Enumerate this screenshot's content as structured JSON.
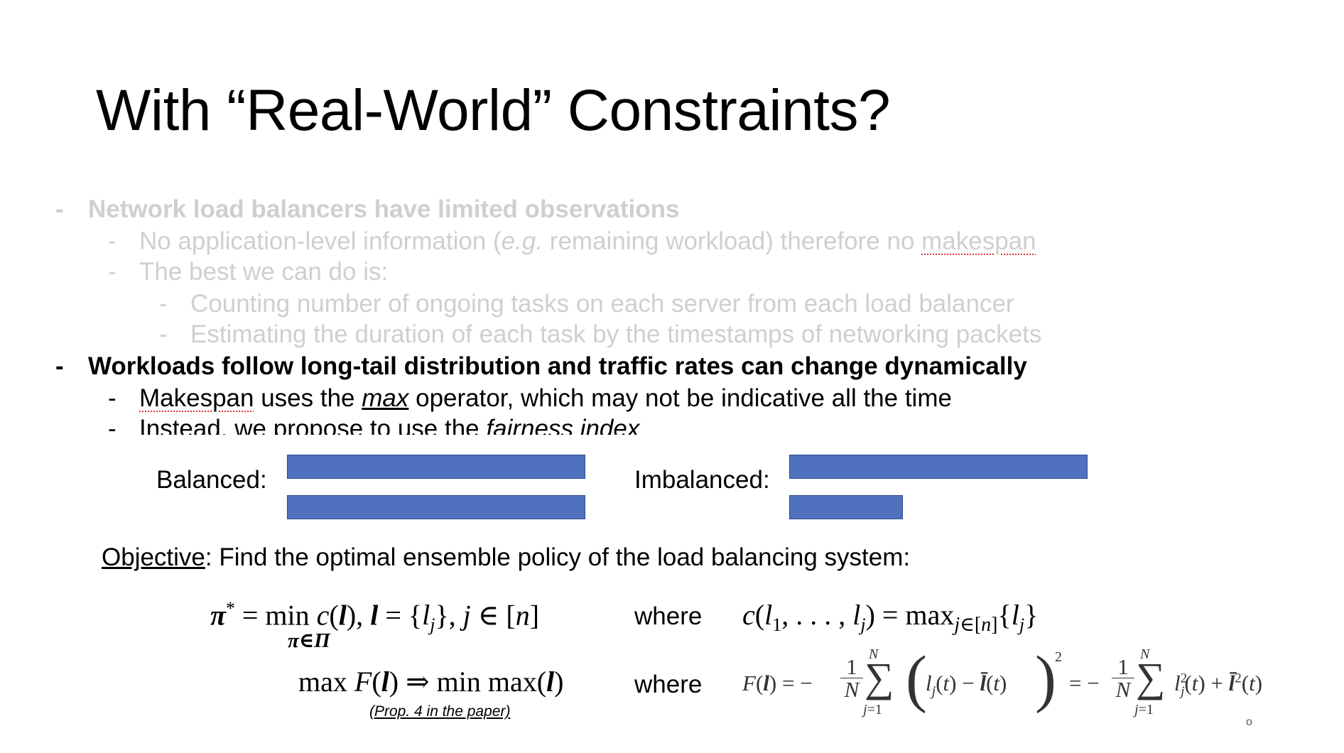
{
  "title": "With “Real-World” Constraints?",
  "bullets": {
    "b1": {
      "dash": "-",
      "text": "Network load balancers have limited observations"
    },
    "b1_1": {
      "dash": "-",
      "pre": "No application-level information (",
      "em": "e.g.",
      "post": " remaining workload) therefore no ",
      "word": "makespan"
    },
    "b1_2": {
      "dash": "-",
      "text": "The best we can do is:"
    },
    "b1_2_1": {
      "dash": "-",
      "text": "Counting number of ongoing tasks on each server from each load balancer"
    },
    "b1_2_2": {
      "dash": "-",
      "text": "Estimating the duration of each task by the timestamps of networking packets"
    },
    "b2": {
      "dash": "-",
      "text": "Workloads follow long-tail distribution and traffic rates can change dynamically"
    },
    "b2_1": {
      "dash": "-",
      "word": "Makespan",
      "pre": " uses the ",
      "em": "max",
      "post": " operator, which may not be indicative all the time"
    },
    "b2_2": {
      "dash": "-",
      "pre": "Instead, we propose to use the ",
      "em": "fairness index"
    }
  },
  "balanced_label": "Balanced:",
  "imbalanced_label": "Imbalanced:",
  "bar_color": "#4f71be",
  "bars": {
    "balanced": [
      1.0,
      1.0
    ],
    "imbalanced": [
      1.0,
      0.38
    ]
  },
  "objective": {
    "label": "Objective",
    "text": ": Find the optimal ensemble policy of the load balancing system:"
  },
  "eq1": {
    "lhs": "π* = min c(l), l = {lj}, j ∈ [n]",
    "sub": "π∈Π",
    "where": "where",
    "rhs": "c(l1, . . . , lj) = maxj∈[n]{lj}"
  },
  "eq2": {
    "lhs": "max F(l) ⇒ min max(l)",
    "where": "where",
    "rhs": "F(l) = −(1/N) Σ j=1..N (lj(t) − l̄(t))² = −(1/N) Σ j=1..N lj²(t) + l̄²(t)"
  },
  "prop": "(Prop. 4 in the paper)",
  "mark": "o"
}
